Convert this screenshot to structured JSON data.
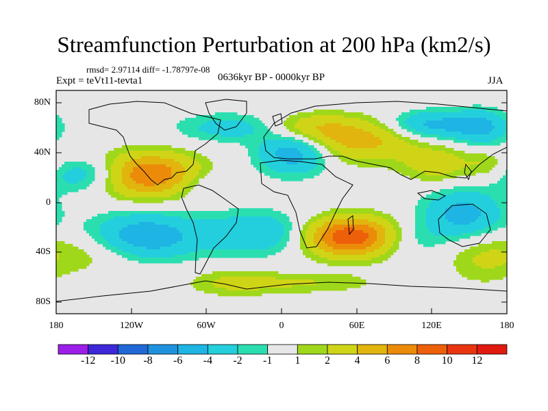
{
  "title": "Streamfunction Perturbation at 200 hPa (km2/s)",
  "stats": "rmsd= 2.97114 diff= -1.78797e-08",
  "experiment": "Expt = teVt11-tevta1",
  "period": "0636kyr BP - 0000kyr BP",
  "season": "JJA",
  "lat_labels": [
    "80N",
    "40N",
    "0",
    "40S",
    "80S"
  ],
  "lon_labels": [
    "180",
    "120W",
    "60W",
    "0",
    "60E",
    "120E",
    "180"
  ],
  "colorbar": {
    "labels": [
      "-12",
      "-10",
      "-8",
      "-6",
      "-4",
      "-2",
      "-1",
      "1",
      "2",
      "4",
      "6",
      "8",
      "10",
      "12"
    ],
    "colors": [
      "#9b1fe8",
      "#3d27d8",
      "#1f68d6",
      "#1e92df",
      "#1eb4e4",
      "#23cfdc",
      "#2bdeb0",
      "#e6e6e6",
      "#9fd81a",
      "#cfd516",
      "#e1b40e",
      "#ec8b0a",
      "#ee5f0a",
      "#ea3410",
      "#e11a10"
    ]
  },
  "chart_data": {
    "type": "heatmap",
    "title": "Streamfunction Perturbation at 200 hPa (km2/s)",
    "units": "km2/s",
    "x_range": [
      -180,
      180
    ],
    "y_range": [
      -90,
      90
    ],
    "background_value": 0,
    "features": [
      {
        "lon": -110,
        "lat": 22,
        "peak": 9,
        "spread_lon": 30,
        "spread_lat": 12
      },
      {
        "lon": 55,
        "lat": -28,
        "peak": 10,
        "spread_lon": 26,
        "spread_lat": 11
      },
      {
        "lon": 60,
        "lat": 50,
        "peak": 5,
        "spread_lon": 35,
        "spread_lat": 12
      },
      {
        "lon": 20,
        "lat": 60,
        "peak": 3,
        "spread_lon": 25,
        "spread_lat": 8
      },
      {
        "lon": 125,
        "lat": 30,
        "peak": 3,
        "spread_lon": 20,
        "spread_lat": 10
      },
      {
        "lon": 165,
        "lat": 30,
        "peak": 2,
        "spread_lon": 12,
        "spread_lat": 8
      },
      {
        "lon": -150,
        "lat": -40,
        "peak": 2,
        "spread_lon": 30,
        "spread_lat": 12
      },
      {
        "lon": -40,
        "lat": -65,
        "peak": 2,
        "spread_lon": 25,
        "spread_lat": 8
      },
      {
        "lon": 20,
        "lat": -65,
        "peak": 2,
        "spread_lon": 40,
        "spread_lat": 6
      },
      {
        "lon": 160,
        "lat": -45,
        "peak": 2,
        "spread_lon": 20,
        "spread_lat": 15
      },
      {
        "lon": -40,
        "lat": 60,
        "peak": -3,
        "spread_lon": 30,
        "spread_lat": 8
      },
      {
        "lon": 10,
        "lat": 40,
        "peak": -6,
        "spread_lon": 20,
        "spread_lat": 12
      },
      {
        "lon": 120,
        "lat": 62,
        "peak": -5,
        "spread_lon": 25,
        "spread_lat": 8
      },
      {
        "lon": 160,
        "lat": 60,
        "peak": -4,
        "spread_lon": 15,
        "spread_lat": 10
      },
      {
        "lon": -150,
        "lat": 22,
        "peak": -5,
        "spread_lon": 25,
        "spread_lat": 10
      },
      {
        "lon": -110,
        "lat": -28,
        "peak": -6,
        "spread_lon": 30,
        "spread_lat": 13
      },
      {
        "lon": -20,
        "lat": -25,
        "peak": -4,
        "spread_lon": 30,
        "spread_lat": 12
      },
      {
        "lon": 145,
        "lat": -10,
        "peak": -5,
        "spread_lon": 22,
        "spread_lat": 14
      },
      {
        "lon": 100,
        "lat": -30,
        "peak": -2,
        "spread_lon": 20,
        "spread_lat": 10
      },
      {
        "lon": -60,
        "lat": 15,
        "peak": -2,
        "spread_lon": 20,
        "spread_lat": 8
      }
    ]
  }
}
